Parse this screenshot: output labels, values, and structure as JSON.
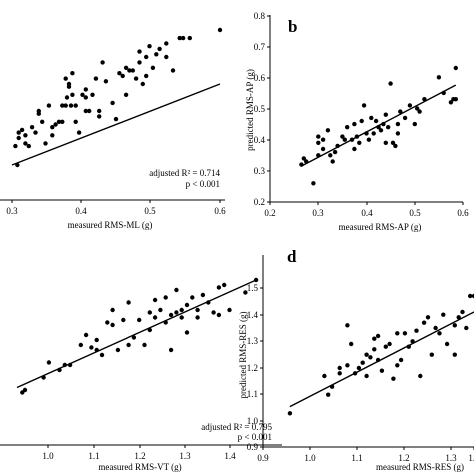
{
  "chart_data": [
    {
      "panel": "a",
      "panel_label": "",
      "type": "scatter",
      "xlabel": "measured RMS-ML (g)",
      "ylabel": "",
      "xticks": [
        "0.3",
        "0.4",
        "0.5",
        "0.6"
      ],
      "yticks": [],
      "xlim": [
        0.29,
        0.6
      ],
      "ylim": [
        0.2,
        0.8
      ],
      "annotation_lines": [
        "adjusted R² = 0.714",
        "p < 0.001"
      ],
      "fit_line": [
        [
          0.29,
          0.3
        ],
        [
          0.6,
          0.6
        ]
      ],
      "x": [
        0.295,
        0.298,
        0.3,
        0.3,
        0.305,
        0.31,
        0.31,
        0.315,
        0.32,
        0.325,
        0.33,
        0.33,
        0.335,
        0.34,
        0.345,
        0.35,
        0.35,
        0.355,
        0.36,
        0.365,
        0.365,
        0.37,
        0.37,
        0.372,
        0.375,
        0.375,
        0.378,
        0.38,
        0.38,
        0.385,
        0.385,
        0.39,
        0.395,
        0.4,
        0.4,
        0.4,
        0.405,
        0.41,
        0.415,
        0.42,
        0.42,
        0.425,
        0.43,
        0.44,
        0.445,
        0.45,
        0.455,
        0.46,
        0.46,
        0.465,
        0.47,
        0.475,
        0.48,
        0.48,
        0.485,
        0.49,
        0.49,
        0.495,
        0.5,
        0.505,
        0.51,
        0.52,
        0.52,
        0.53,
        0.54,
        0.545,
        0.555,
        0.6
      ],
      "y": [
        0.37,
        0.3,
        0.4,
        0.42,
        0.43,
        0.38,
        0.41,
        0.37,
        0.44,
        0.42,
        0.5,
        0.49,
        0.46,
        0.38,
        0.52,
        0.44,
        0.41,
        0.45,
        0.46,
        0.46,
        0.52,
        0.52,
        0.62,
        0.55,
        0.6,
        0.59,
        0.52,
        0.56,
        0.64,
        0.46,
        0.52,
        0.42,
        0.56,
        0.5,
        0.55,
        0.58,
        0.5,
        0.56,
        0.62,
        0.48,
        0.5,
        0.68,
        0.61,
        0.53,
        0.47,
        0.64,
        0.63,
        0.56,
        0.66,
        0.65,
        0.65,
        0.62,
        0.68,
        0.72,
        0.6,
        0.63,
        0.7,
        0.74,
        0.66,
        0.71,
        0.73,
        0.7,
        0.75,
        0.65,
        0.77,
        0.77,
        0.77,
        0.8
      ]
    },
    {
      "panel": "b",
      "panel_label": "b",
      "type": "scatter",
      "xlabel": "measured RMS-AP (g)",
      "ylabel": "predicted RMS-AP (g)",
      "xticks": [
        "0.2",
        "0.3",
        "0.4",
        "0.5",
        "0.6"
      ],
      "yticks": [
        "0.2",
        "0.3",
        "0.4",
        "0.5",
        "0.6",
        "0.7",
        "0.8"
      ],
      "xlim": [
        0.2,
        0.6
      ],
      "ylim": [
        0.2,
        0.8
      ],
      "annotation_lines": [],
      "fit_line": [
        [
          0.265,
          0.315
        ],
        [
          0.585,
          0.575
        ]
      ],
      "x": [
        0.265,
        0.27,
        0.275,
        0.29,
        0.3,
        0.3,
        0.3,
        0.31,
        0.31,
        0.32,
        0.325,
        0.33,
        0.335,
        0.34,
        0.35,
        0.355,
        0.36,
        0.37,
        0.375,
        0.375,
        0.38,
        0.385,
        0.39,
        0.395,
        0.4,
        0.405,
        0.41,
        0.415,
        0.42,
        0.425,
        0.43,
        0.435,
        0.44,
        0.44,
        0.445,
        0.45,
        0.455,
        0.46,
        0.465,
        0.465,
        0.47,
        0.48,
        0.49,
        0.5,
        0.505,
        0.51,
        0.52,
        0.55,
        0.56,
        0.575,
        0.58,
        0.585,
        0.585
      ],
      "y": [
        0.32,
        0.34,
        0.33,
        0.26,
        0.35,
        0.39,
        0.41,
        0.37,
        0.4,
        0.43,
        0.35,
        0.33,
        0.36,
        0.38,
        0.41,
        0.4,
        0.44,
        0.4,
        0.37,
        0.45,
        0.41,
        0.39,
        0.46,
        0.51,
        0.42,
        0.4,
        0.47,
        0.42,
        0.46,
        0.44,
        0.43,
        0.45,
        0.39,
        0.48,
        0.44,
        0.58,
        0.39,
        0.38,
        0.42,
        0.45,
        0.49,
        0.47,
        0.51,
        0.45,
        0.5,
        0.49,
        0.53,
        0.6,
        0.55,
        0.52,
        0.53,
        0.53,
        0.63
      ]
    },
    {
      "panel": "c",
      "panel_label": "",
      "type": "scatter",
      "xlabel": "measured RMS-VT (g)",
      "ylabel": "",
      "xticks": [
        "1.0",
        "1.1",
        "1.2",
        "1.3",
        "1.4"
      ],
      "yticks": [],
      "xlim": [
        0.92,
        1.4
      ],
      "ylim": [
        0.9,
        1.5
      ],
      "annotation_lines": [
        "adjusted R² = 0.795",
        "p < 0.001"
      ],
      "fit_line": [
        [
          0.92,
          0.99
        ],
        [
          1.37,
          1.42
        ]
      ],
      "x": [
        0.93,
        0.935,
        0.97,
        0.98,
        1.0,
        1.01,
        1.02,
        1.04,
        1.05,
        1.06,
        1.07,
        1.07,
        1.08,
        1.09,
        1.1,
        1.1,
        1.11,
        1.12,
        1.13,
        1.13,
        1.14,
        1.15,
        1.16,
        1.17,
        1.17,
        1.18,
        1.18,
        1.19,
        1.2,
        1.2,
        1.21,
        1.21,
        1.22,
        1.22,
        1.23,
        1.23,
        1.24,
        1.24,
        1.25,
        1.26,
        1.26,
        1.27,
        1.28,
        1.29,
        1.3,
        1.3,
        1.31,
        1.32,
        1.35,
        1.37
      ],
      "y": [
        0.97,
        0.98,
        1.03,
        1.09,
        1.06,
        1.08,
        1.08,
        1.16,
        1.2,
        1.15,
        1.14,
        1.18,
        1.12,
        1.25,
        1.24,
        1.3,
        1.14,
        1.26,
        1.16,
        1.33,
        1.19,
        1.26,
        1.16,
        1.29,
        1.22,
        1.27,
        1.34,
        1.3,
        1.25,
        1.35,
        1.14,
        1.28,
        1.29,
        1.38,
        1.27,
        1.3,
        1.21,
        1.32,
        1.35,
        1.27,
        1.3,
        1.36,
        1.33,
        1.29,
        1.39,
        1.28,
        1.4,
        1.3,
        1.37,
        1.42
      ]
    },
    {
      "panel": "d",
      "panel_label": "d",
      "type": "scatter",
      "xlabel": "measured RMS-RES (g)",
      "ylabel": "predicted RMS-RES (g)",
      "xticks": [
        "0.9",
        "1.0",
        "1.1",
        "1.2",
        "1.3",
        "1.4"
      ],
      "yticks": [
        "0.9",
        "1.0",
        "1.1",
        "1.2",
        "1.3",
        "1.4",
        "1.5"
      ],
      "xlim": [
        0.9,
        1.45
      ],
      "ylim": [
        0.9,
        1.5
      ],
      "annotation_lines": [],
      "fit_line": [
        [
          0.97,
          1.025
        ],
        [
          1.45,
          1.38
        ]
      ],
      "x": [
        0.97,
        1.06,
        1.07,
        1.08,
        1.1,
        1.1,
        1.12,
        1.12,
        1.13,
        1.14,
        1.15,
        1.16,
        1.17,
        1.17,
        1.18,
        1.19,
        1.19,
        1.2,
        1.2,
        1.21,
        1.22,
        1.23,
        1.24,
        1.25,
        1.25,
        1.26,
        1.27,
        1.28,
        1.29,
        1.3,
        1.31,
        1.32,
        1.33,
        1.34,
        1.35,
        1.36,
        1.37,
        1.38,
        1.4,
        1.4,
        1.41,
        1.42,
        1.43,
        1.44,
        1.45
      ],
      "y": [
        1.0,
        1.14,
        1.07,
        1.1,
        1.15,
        1.17,
        1.33,
        1.18,
        1.26,
        1.15,
        1.17,
        1.19,
        1.14,
        1.22,
        1.21,
        1.24,
        1.28,
        1.2,
        1.29,
        1.16,
        1.25,
        1.26,
        1.13,
        1.18,
        1.3,
        1.2,
        1.3,
        1.25,
        1.27,
        1.31,
        1.14,
        1.34,
        1.36,
        1.22,
        1.32,
        1.3,
        1.37,
        1.26,
        1.33,
        1.22,
        1.36,
        1.38,
        1.32,
        1.44,
        1.44
      ]
    }
  ]
}
